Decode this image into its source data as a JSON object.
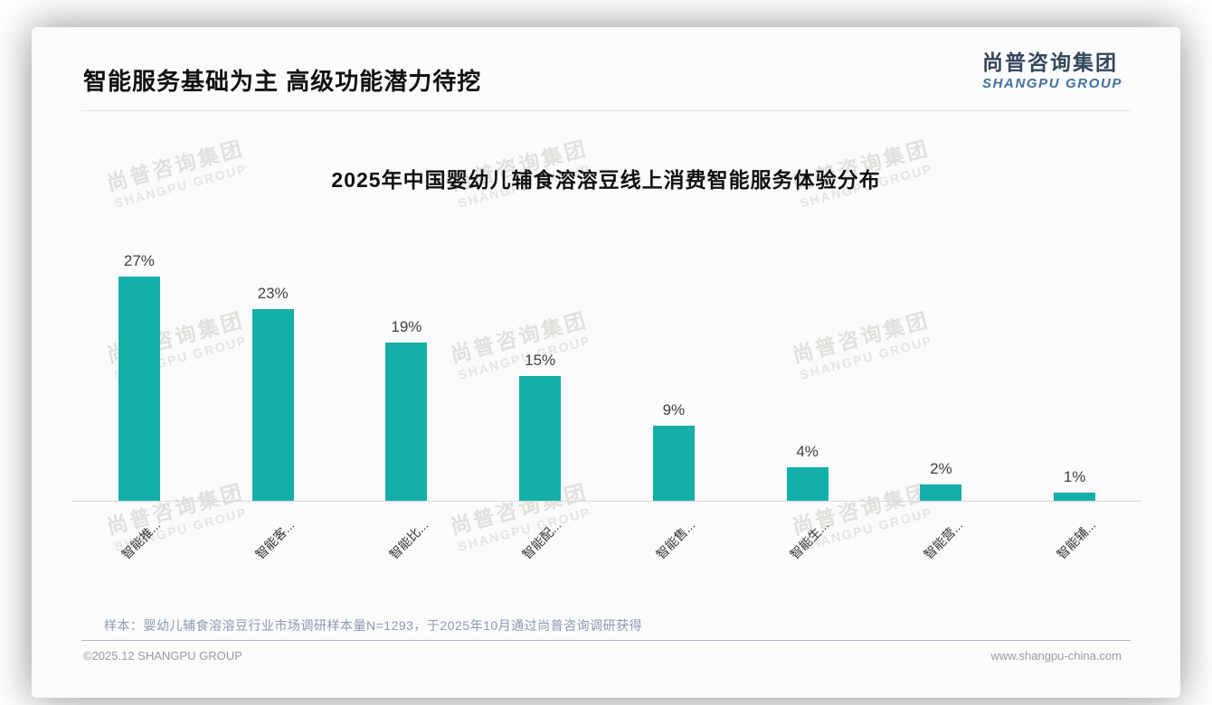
{
  "page": {
    "title": "智能服务基础为主 高级功能潜力待挖",
    "logo": {
      "cn": "尚普咨询集团",
      "en": "SHANGPU GROUP"
    },
    "watermark": {
      "cn": "尚普咨询集团",
      "en": "SHANGPU GROUP"
    },
    "note": "样本：婴幼儿辅食溶溶豆行业市场调研样本量N=1293，于2025年10月通过尚普咨询调研获得",
    "footer": {
      "left": "©2025.12 SHANGPU GROUP",
      "right": "www.shangpu-china.com"
    }
  },
  "chart_data": {
    "type": "bar",
    "title": "2025年中国婴幼儿辅食溶溶豆线上消费智能服务体验分布",
    "categories": [
      "智能推...",
      "智能客...",
      "智能比...",
      "智能配...",
      "智能售...",
      "智能生...",
      "智能营...",
      "智能辅..."
    ],
    "values": [
      27,
      23,
      19,
      15,
      9,
      4,
      2,
      1
    ],
    "unit": "%",
    "data_labels": true,
    "bar_color": "#13AFA8",
    "ylim": [
      0,
      30
    ],
    "grid": false,
    "legend": "none",
    "category_rotation_deg": -45,
    "pixels_per_unit": 9.2
  }
}
